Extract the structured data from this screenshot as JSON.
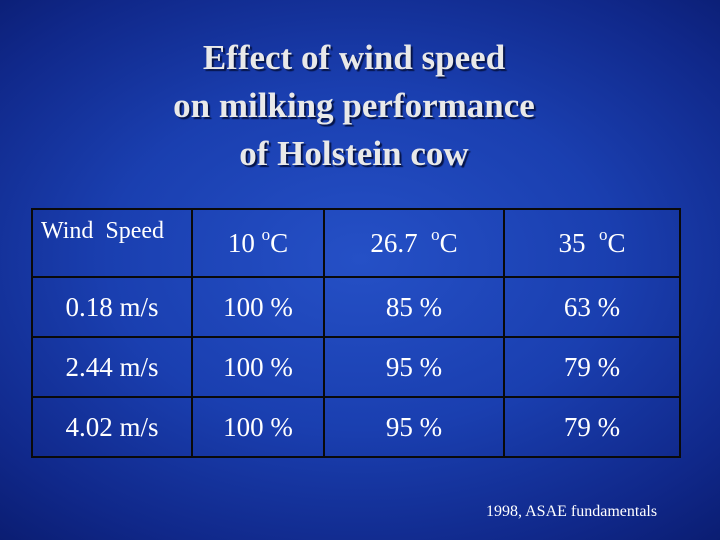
{
  "title_lines": [
    "Effect of wind speed",
    "on milking performance",
    "of Holstein cow"
  ],
  "table": {
    "corner_header": "Wind  Speed",
    "columns": [
      {
        "value": "10 ",
        "sup": "o",
        "unit": "C"
      },
      {
        "value": "26.7  ",
        "sup": "o",
        "unit": "C"
      },
      {
        "value": "35  ",
        "sup": "o",
        "unit": "C"
      }
    ],
    "rows": [
      {
        "wind_speed": "0.18 m/s",
        "cells": [
          "100 %",
          "85 %",
          "63 %"
        ]
      },
      {
        "wind_speed": "2.44 m/s",
        "cells": [
          "100 %",
          "95 %",
          "79 %"
        ]
      },
      {
        "wind_speed": "4.02 m/s",
        "cells": [
          "100 %",
          "95 %",
          "79 %"
        ]
      }
    ]
  },
  "source": "1998, ASAE fundamentals",
  "colors": {
    "background": "#1a3fb0",
    "text": "#ffffff",
    "title_text": "#e9e9e9",
    "grid": "#0a0a0a"
  }
}
